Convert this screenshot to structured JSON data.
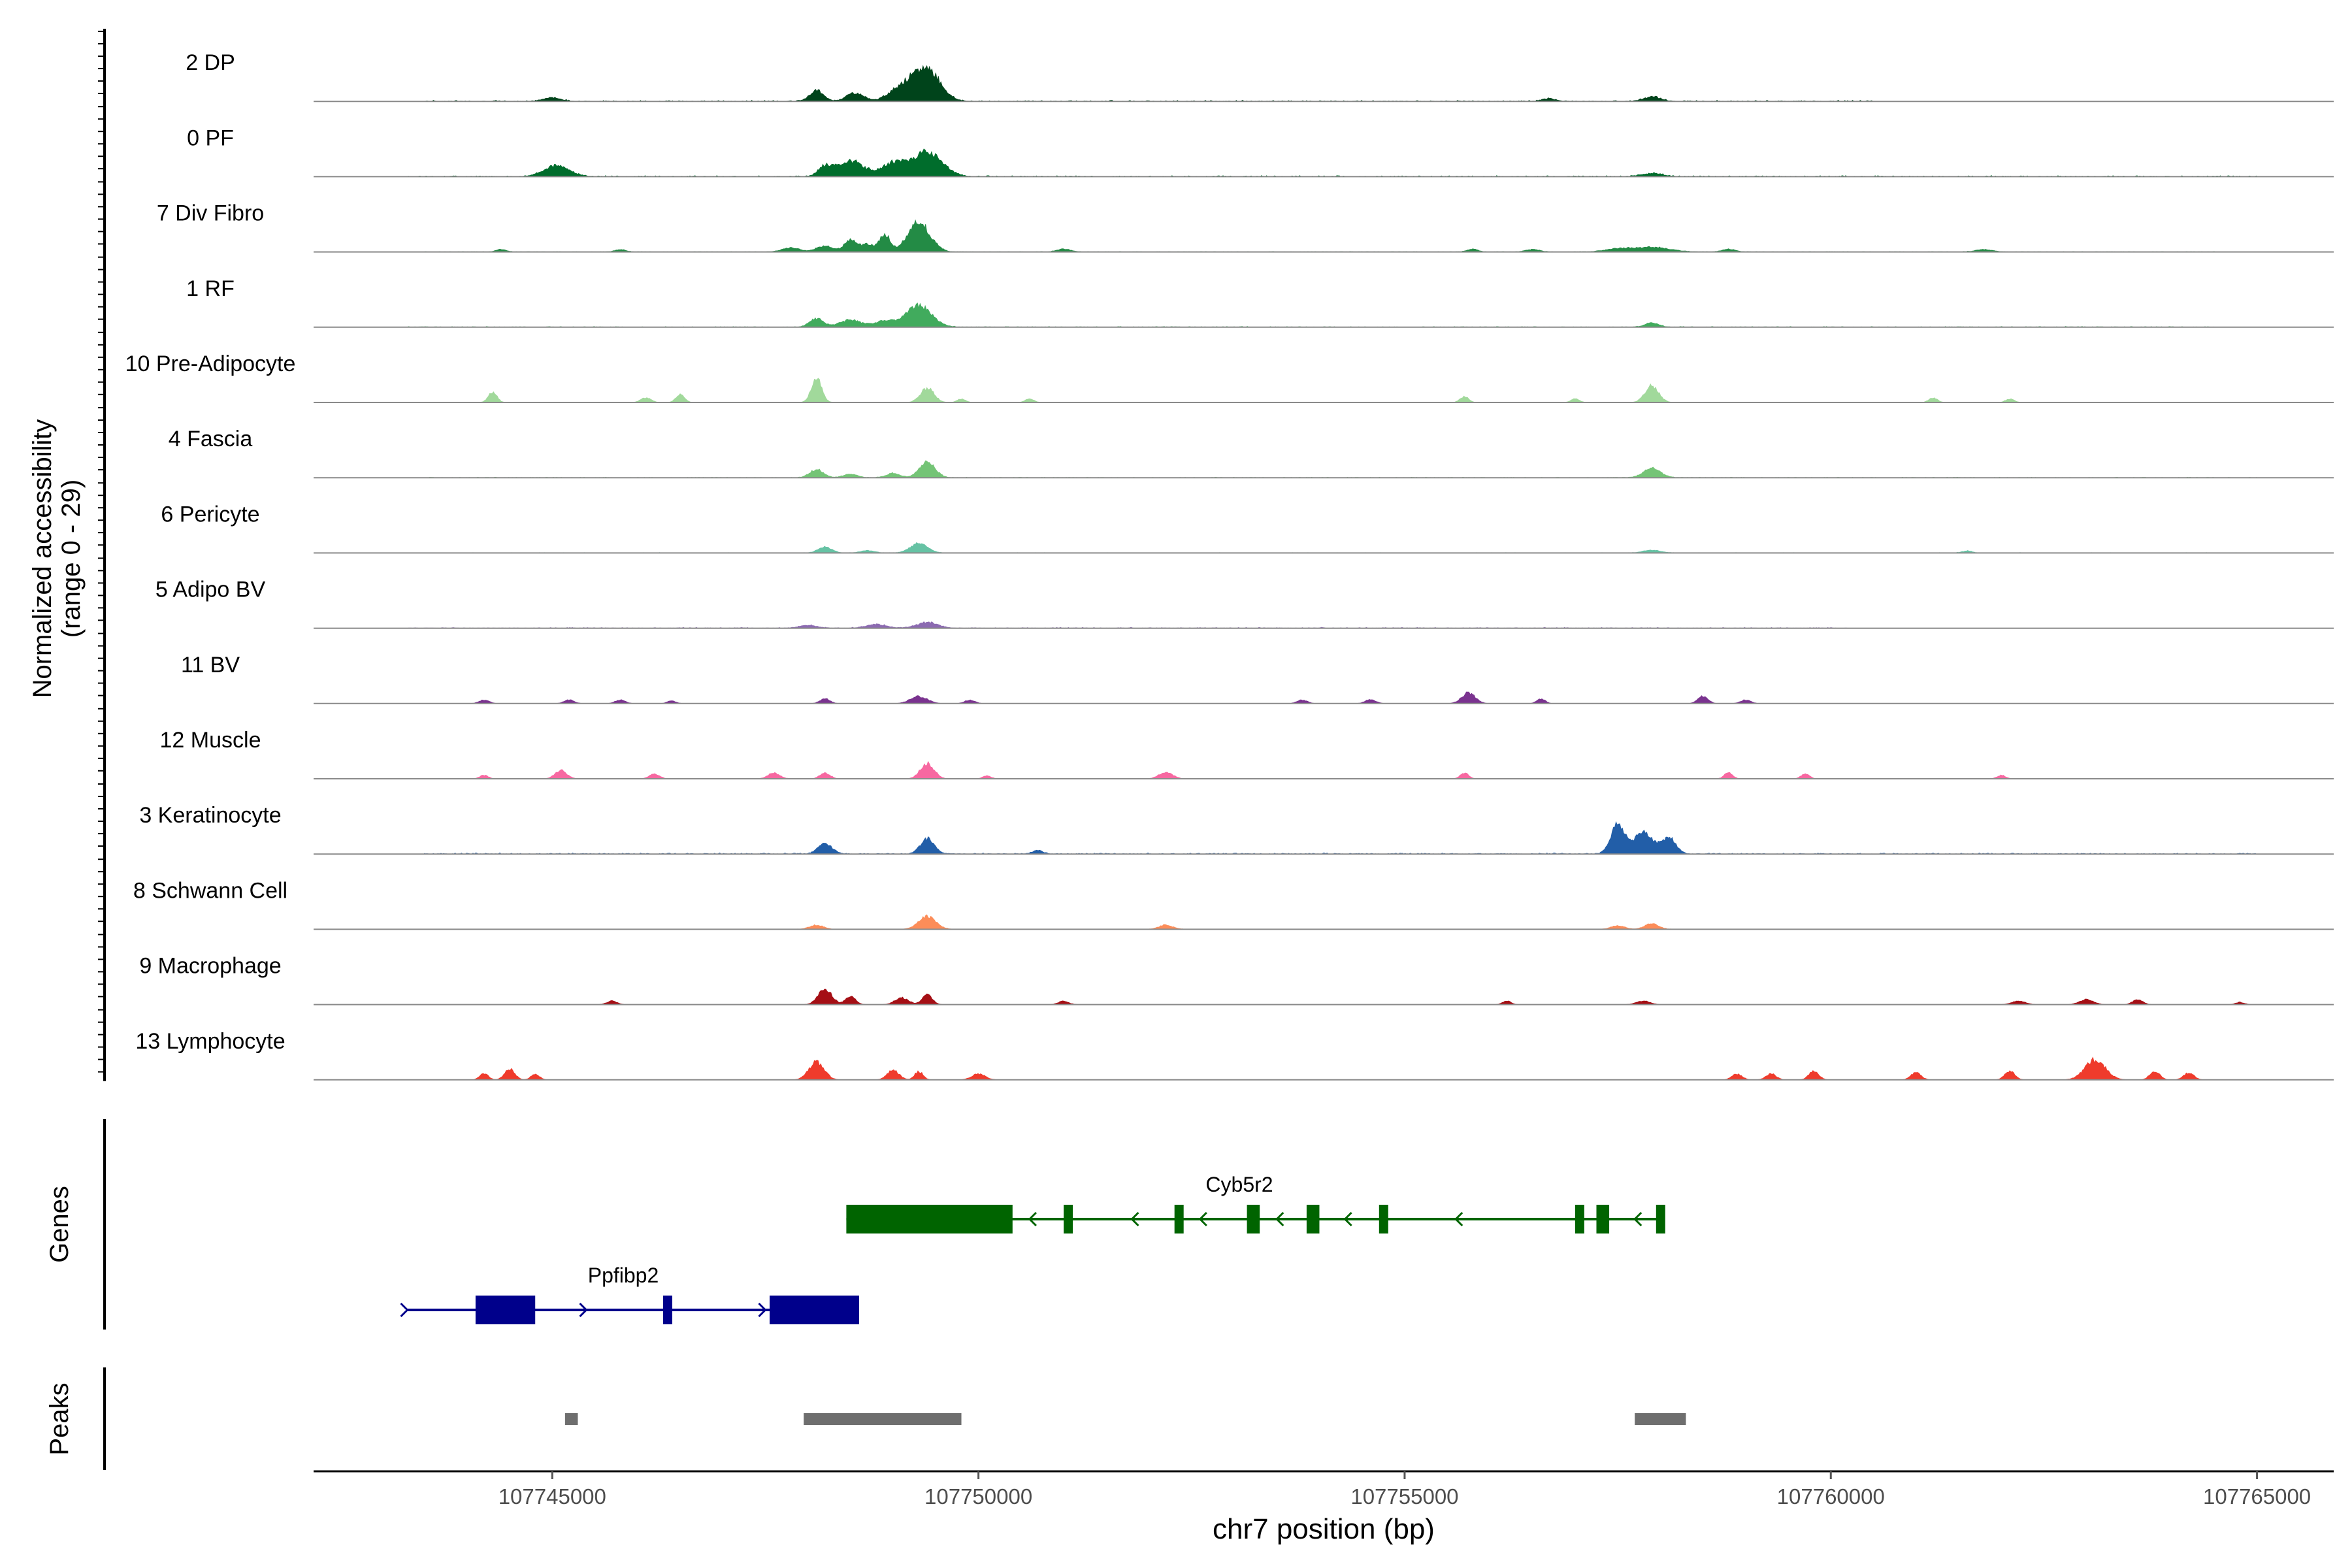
{
  "chart_data": {
    "type": "area",
    "title": "",
    "ylabel_lines": [
      "Normalized accessibility",
      "(range 0 - 29)"
    ],
    "xlabel": "chr7 position (bp)",
    "xlim": [
      107742200,
      107765900
    ],
    "xticks": [
      107745000,
      107750000,
      107755000,
      107760000,
      107765000
    ],
    "xtick_labels": [
      "107745000",
      "107750000",
      "107755000",
      "107760000",
      "107765000"
    ],
    "ylim": [
      0,
      29
    ],
    "tracks": [
      {
        "name": "2 DP",
        "color": "#00441b",
        "noise": 0.5,
        "range": [
          107743500,
          107760500
        ],
        "peaks": [
          [
            107748100,
            4.5,
            80
          ],
          [
            107748550,
            3.5,
            100
          ],
          [
            107749100,
            6.0,
            140
          ],
          [
            107749400,
            13.5,
            150
          ],
          [
            107745000,
            1.5,
            100
          ],
          [
            107756700,
            1.0,
            80
          ],
          [
            107757900,
            1.8,
            100
          ]
        ]
      },
      {
        "name": "0 PF",
        "color": "#006d2c",
        "noise": 0.5,
        "range": [
          107743300,
          107765000
        ],
        "peaks": [
          [
            107745050,
            4.5,
            150
          ],
          [
            107748200,
            4.0,
            80
          ],
          [
            107748500,
            6.5,
            150
          ],
          [
            107749000,
            5.5,
            140
          ],
          [
            107749400,
            10.5,
            170
          ],
          [
            107757900,
            1.3,
            120
          ]
        ]
      },
      {
        "name": "7 Div Fibro",
        "color": "#238b45",
        "noise": 0.2,
        "range": [
          107743500,
          107764500
        ],
        "peaks": [
          [
            107747800,
            1.8,
            100
          ],
          [
            107748200,
            2.5,
            100
          ],
          [
            107748500,
            5.0,
            70
          ],
          [
            107748700,
            3.0,
            80
          ],
          [
            107748900,
            7.5,
            60
          ],
          [
            107749300,
            12.5,
            130
          ],
          [
            107757900,
            2.0,
            200
          ],
          [
            107757500,
            1.2,
            150
          ],
          [
            107744400,
            1.0,
            60
          ],
          [
            107745800,
            1.0,
            60
          ],
          [
            107751000,
            1.2,
            80
          ],
          [
            107755800,
            1.2,
            60
          ],
          [
            107756500,
            1.0,
            80
          ],
          [
            107758800,
            1.1,
            80
          ],
          [
            107761800,
            1.0,
            100
          ]
        ]
      },
      {
        "name": "1 RF",
        "color": "#41ab5d",
        "noise": 0.35,
        "range": [
          107743300,
          107764500
        ],
        "peaks": [
          [
            107748100,
            3.5,
            80
          ],
          [
            107748500,
            3.0,
            120
          ],
          [
            107748900,
            2.5,
            120
          ],
          [
            107749300,
            9.0,
            150
          ],
          [
            107757900,
            1.8,
            80
          ]
        ]
      },
      {
        "name": "10 Pre-Adipocyte",
        "color": "#a1d99b",
        "noise": 0.0,
        "range": [
          107743500,
          107765000
        ],
        "peaks": [
          [
            107744300,
            4.5,
            50
          ],
          [
            107746100,
            2.0,
            60
          ],
          [
            107746500,
            3.5,
            50
          ],
          [
            107748100,
            10.5,
            60
          ],
          [
            107749400,
            6.0,
            80
          ],
          [
            107749800,
            1.5,
            50
          ],
          [
            107750600,
            1.5,
            50
          ],
          [
            107755700,
            2.5,
            50
          ],
          [
            107757000,
            1.5,
            50
          ],
          [
            107757900,
            7.0,
            80
          ],
          [
            107761200,
            2.0,
            50
          ],
          [
            107762100,
            1.5,
            50
          ]
        ]
      },
      {
        "name": "4 Fascia",
        "color": "#74c476",
        "noise": 0.25,
        "range": [
          107743500,
          107765000
        ],
        "peaks": [
          [
            107748100,
            3.5,
            80
          ],
          [
            107748500,
            1.5,
            80
          ],
          [
            107749400,
            7.0,
            90
          ],
          [
            107749000,
            1.8,
            80
          ],
          [
            107757900,
            4.0,
            100
          ]
        ]
      },
      {
        "name": "6 Pericyte",
        "color": "#66c2a4",
        "noise": 0.2,
        "range": [
          107743500,
          107765000
        ],
        "peaks": [
          [
            107748200,
            2.5,
            80
          ],
          [
            107748700,
            1.0,
            80
          ],
          [
            107749300,
            4.0,
            100
          ],
          [
            107757900,
            1.2,
            100
          ],
          [
            107761600,
            0.8,
            60
          ]
        ]
      },
      {
        "name": "5 Adipo BV",
        "color": "#8c6bb1",
        "noise": 0.4,
        "range": [
          107743300,
          107760200
        ],
        "peaks": [
          [
            107749400,
            2.5,
            120
          ],
          [
            107748000,
            1.2,
            100
          ],
          [
            107748800,
            1.5,
            120
          ]
        ]
      },
      {
        "name": "11 BV",
        "color": "#7a338f",
        "noise": 0.0,
        "range": [
          107743500,
          107762000
        ],
        "peaks": [
          [
            107744200,
            1.5,
            60
          ],
          [
            107745200,
            1.5,
            60
          ],
          [
            107745800,
            1.5,
            60
          ],
          [
            107746400,
            1.2,
            50
          ],
          [
            107748200,
            2.0,
            60
          ],
          [
            107749300,
            3.0,
            100
          ],
          [
            107749900,
            1.5,
            60
          ],
          [
            107753800,
            1.5,
            60
          ],
          [
            107754600,
            1.8,
            60
          ],
          [
            107755750,
            4.5,
            80
          ],
          [
            107756600,
            2.0,
            50
          ],
          [
            107758500,
            3.0,
            60
          ],
          [
            107759000,
            1.5,
            60
          ]
        ]
      },
      {
        "name": "12 Muscle",
        "color": "#f768a1",
        "noise": 0.0,
        "range": [
          107743500,
          107763000
        ],
        "peaks": [
          [
            107744200,
            1.5,
            50
          ],
          [
            107745100,
            3.5,
            70
          ],
          [
            107746200,
            2.0,
            60
          ],
          [
            107747600,
            2.5,
            70
          ],
          [
            107748200,
            2.5,
            60
          ],
          [
            107749400,
            6.5,
            80
          ],
          [
            107750100,
            1.2,
            50
          ],
          [
            107752200,
            2.8,
            80
          ],
          [
            107755700,
            2.5,
            50
          ],
          [
            107758800,
            2.5,
            50
          ],
          [
            107759700,
            2.0,
            50
          ],
          [
            107762000,
            1.5,
            50
          ]
        ]
      },
      {
        "name": "3 Keratinocyte",
        "color": "#225ea8",
        "noise": 0.5,
        "range": [
          107743500,
          107765000
        ],
        "peaks": [
          [
            107748200,
            4.5,
            80
          ],
          [
            107749400,
            6.5,
            80
          ],
          [
            107757500,
            12.5,
            80
          ],
          [
            107757800,
            9.5,
            110
          ],
          [
            107758100,
            7.0,
            80
          ],
          [
            107750700,
            1.5,
            60
          ]
        ]
      },
      {
        "name": "8 Schwann Cell",
        "color": "#fc8d59",
        "noise": 0.15,
        "range": [
          107743500,
          107763500
        ],
        "peaks": [
          [
            107748100,
            1.8,
            80
          ],
          [
            107749400,
            5.5,
            100
          ],
          [
            107752200,
            1.8,
            80
          ],
          [
            107757500,
            1.5,
            80
          ],
          [
            107757900,
            2.5,
            80
          ]
        ]
      },
      {
        "name": "9 Macrophage",
        "color": "#a50f15",
        "noise": 0.0,
        "range": [
          107743500,
          107765000
        ],
        "peaks": [
          [
            107745700,
            1.5,
            60
          ],
          [
            107748200,
            6.5,
            80
          ],
          [
            107748500,
            3.5,
            60
          ],
          [
            107749100,
            2.8,
            80
          ],
          [
            107749400,
            4.0,
            60
          ],
          [
            107751000,
            1.5,
            60
          ],
          [
            107756200,
            1.5,
            50
          ],
          [
            107757800,
            1.5,
            80
          ],
          [
            107762200,
            1.5,
            80
          ],
          [
            107763000,
            2.2,
            80
          ],
          [
            107763600,
            2.0,
            60
          ],
          [
            107764800,
            1.0,
            50
          ]
        ]
      },
      {
        "name": "13 Lymphocyte",
        "color": "#ef3b2c",
        "noise": 0.0,
        "range": [
          107743500,
          107765000
        ],
        "peaks": [
          [
            107744200,
            2.8,
            50
          ],
          [
            107744500,
            4.5,
            60
          ],
          [
            107744800,
            2.5,
            50
          ],
          [
            107748100,
            7.5,
            90
          ],
          [
            107749000,
            4.0,
            70
          ],
          [
            107749300,
            3.5,
            50
          ],
          [
            107750000,
            2.5,
            80
          ],
          [
            107758900,
            2.5,
            60
          ],
          [
            107759300,
            2.5,
            60
          ],
          [
            107759800,
            3.5,
            60
          ],
          [
            107761000,
            3.0,
            60
          ],
          [
            107762100,
            3.5,
            60
          ],
          [
            107763100,
            8.5,
            120
          ],
          [
            107763800,
            3.5,
            60
          ],
          [
            107764200,
            3.0,
            60
          ]
        ]
      }
    ],
    "genes": [
      {
        "name": "Cyb5r2",
        "strand": "-",
        "color": "#006400",
        "start": 107748450,
        "end": 107758050,
        "exons": [
          [
            107748450,
            107750400,
            "utr"
          ],
          [
            107751000,
            107751100,
            "cds"
          ],
          [
            107752300,
            107752400,
            "cds"
          ],
          [
            107753150,
            107753300,
            "cds"
          ],
          [
            107753850,
            107754000,
            "cds"
          ],
          [
            107754700,
            107754800,
            "cds"
          ],
          [
            107757000,
            107757100,
            "cds"
          ],
          [
            107757250,
            107757400,
            "cds"
          ],
          [
            107757950,
            107758050,
            "cds"
          ]
        ],
        "arrows": [
          107750600,
          107751800,
          107752600,
          107753500,
          107754300,
          107755600,
          107757000,
          107757700
        ]
      },
      {
        "name": "Ppfibp2",
        "strand": "+",
        "color": "#00008b",
        "start": 107743300,
        "end": 107748600,
        "exons": [
          [
            107744100,
            107744800,
            "utr"
          ],
          [
            107746300,
            107746400,
            "cds"
          ],
          [
            107747550,
            107748600,
            "utr"
          ]
        ],
        "arrows": [
          107743300,
          107745400,
          107747500
        ]
      }
    ],
    "peaks_track": [
      [
        107745150,
        107745300
      ],
      [
        107747950,
        107749800
      ],
      [
        107757700,
        107758300
      ]
    ],
    "peak_color": "#6e6e6e",
    "panel_labels": {
      "genes": "Genes",
      "peaks": "Peaks"
    }
  }
}
